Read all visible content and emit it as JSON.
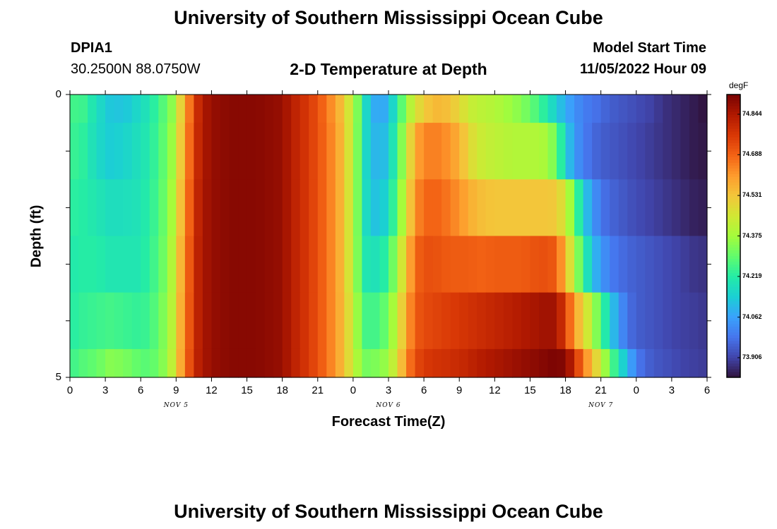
{
  "header": {
    "title": "University of Southern Mississippi Ocean Cube",
    "station": "DPIA1",
    "coords": "30.2500N  88.0750W",
    "plot_title": "2-D Temperature at Depth",
    "model_start_label": "Model Start Time",
    "model_start_value": "11/05/2022 Hour 09"
  },
  "footer": {
    "title": "University of Southern Mississippi Ocean Cube"
  },
  "chart_data": {
    "type": "heatmap",
    "title": "2-D Temperature at Depth",
    "xlabel": "Forecast Time(Z)",
    "ylabel": "Depth (ft)",
    "x_tick_labels": [
      "0",
      "3",
      "6",
      "9",
      "12",
      "15",
      "18",
      "21",
      "0",
      "3",
      "6",
      "9",
      "12",
      "15",
      "18",
      "21",
      "0",
      "3",
      "6"
    ],
    "date_labels": [
      {
        "text": "NOV 5",
        "hour": 12
      },
      {
        "text": "NOV 6",
        "hour": 36
      },
      {
        "text": "NOV 7",
        "hour": 60
      }
    ],
    "y_tick_labels": [
      "0",
      "5"
    ],
    "xlim_hours": [
      0,
      72
    ],
    "ylim_ft": [
      0,
      5
    ],
    "colorbar": {
      "unit": "degF",
      "ticks": [
        "74.844",
        "74.688",
        "74.531",
        "74.375",
        "74.219",
        "74.062",
        "73.906"
      ],
      "tick_values": [
        74.844,
        74.688,
        74.531,
        74.375,
        74.219,
        74.062,
        73.906
      ],
      "range": [
        73.83,
        74.92
      ],
      "colormap": [
        "#30123b",
        "#4145ab",
        "#4675ed",
        "#39a2fc",
        "#1bcfd4",
        "#24eca6",
        "#61fc6c",
        "#a4fc3b",
        "#d1e834",
        "#f3c63a",
        "#fe9b2d",
        "#f36315",
        "#d93806",
        "#b11901",
        "#7a0403"
      ]
    },
    "depth_levels_ft": [
      0,
      0.5,
      1.5,
      2.5,
      3.5,
      4.5,
      5
    ],
    "hour_keys": [
      0,
      1.5,
      3,
      4.5,
      6,
      7.5,
      9,
      10.5,
      12,
      12.5,
      13,
      14,
      15,
      16,
      18,
      21,
      24,
      25,
      26,
      27,
      28,
      29,
      30,
      31,
      32,
      33,
      33.5,
      34,
      34.5,
      35,
      36,
      37,
      38,
      39,
      40,
      41,
      42,
      43,
      44,
      45,
      46,
      47,
      48,
      49,
      50,
      51,
      52,
      53,
      54,
      55,
      56,
      57,
      58,
      59,
      60,
      61,
      62,
      63,
      64,
      65,
      66,
      67,
      68,
      69,
      70,
      71,
      72
    ],
    "values_by_depth": [
      [
        74.26,
        74.25,
        74.18,
        74.13,
        74.12,
        74.16,
        74.2,
        74.28,
        74.38,
        74.5,
        74.56,
        74.76,
        74.84,
        74.88,
        74.9,
        74.9,
        74.88,
        74.83,
        74.8,
        74.76,
        74.72,
        74.66,
        74.6,
        74.52,
        74.4,
        74.26,
        74.16,
        74.12,
        74.08,
        74.06,
        74.1,
        74.22,
        74.36,
        74.46,
        74.52,
        74.55,
        74.56,
        74.53,
        74.5,
        74.44,
        74.42,
        74.41,
        74.4,
        74.38,
        74.36,
        74.34,
        74.3,
        74.26,
        74.2,
        74.14,
        74.08,
        74.04,
        74.0,
        73.99,
        73.97,
        73.95,
        73.94,
        73.93,
        73.92,
        73.91,
        73.9,
        73.88,
        73.87,
        73.86,
        73.85,
        73.84,
        73.83
      ],
      [
        74.25,
        74.23,
        74.17,
        74.14,
        74.15,
        74.18,
        74.21,
        74.29,
        74.4,
        74.52,
        74.58,
        74.77,
        74.84,
        74.88,
        74.9,
        74.9,
        74.88,
        74.83,
        74.8,
        74.76,
        74.72,
        74.67,
        74.61,
        74.53,
        74.4,
        74.25,
        74.16,
        74.12,
        74.1,
        74.09,
        74.13,
        74.26,
        74.42,
        74.58,
        74.64,
        74.65,
        74.64,
        74.61,
        74.57,
        74.5,
        74.45,
        74.43,
        74.42,
        74.41,
        74.4,
        74.4,
        74.4,
        74.39,
        74.38,
        74.3,
        74.15,
        74.05,
        74.0,
        73.97,
        73.95,
        73.94,
        73.93,
        73.92,
        73.91,
        73.9,
        73.89,
        73.88,
        73.87,
        73.86,
        73.85,
        73.84,
        73.84
      ],
      [
        74.23,
        74.22,
        74.2,
        74.18,
        74.18,
        74.19,
        74.22,
        74.3,
        74.42,
        74.54,
        74.6,
        74.78,
        74.85,
        74.88,
        74.9,
        74.9,
        74.88,
        74.83,
        74.8,
        74.76,
        74.72,
        74.67,
        74.61,
        74.53,
        74.4,
        74.25,
        74.17,
        74.14,
        74.12,
        74.12,
        74.17,
        74.3,
        74.46,
        74.62,
        74.68,
        74.69,
        74.68,
        74.65,
        74.62,
        74.58,
        74.55,
        74.54,
        74.53,
        74.53,
        74.53,
        74.53,
        74.53,
        74.53,
        74.53,
        74.52,
        74.45,
        74.3,
        74.15,
        74.05,
        73.99,
        73.96,
        73.95,
        73.93,
        73.92,
        73.91,
        73.9,
        73.89,
        73.88,
        73.87,
        73.86,
        73.85,
        73.85
      ],
      [
        74.21,
        74.22,
        74.22,
        74.2,
        74.2,
        74.2,
        74.23,
        74.31,
        74.44,
        74.56,
        74.62,
        74.79,
        74.85,
        74.88,
        74.9,
        74.9,
        74.88,
        74.83,
        74.8,
        74.76,
        74.72,
        74.67,
        74.61,
        74.53,
        74.4,
        74.26,
        74.2,
        74.19,
        74.19,
        74.19,
        74.25,
        74.38,
        74.53,
        74.68,
        74.72,
        74.72,
        74.71,
        74.7,
        74.7,
        74.7,
        74.69,
        74.69,
        74.7,
        74.7,
        74.7,
        74.7,
        74.71,
        74.72,
        74.72,
        74.7,
        74.55,
        74.4,
        74.25,
        74.12,
        74.05,
        74.0,
        73.98,
        73.96,
        73.95,
        73.94,
        73.93,
        73.92,
        73.91,
        73.9,
        73.89,
        73.88,
        73.88
      ],
      [
        74.22,
        74.24,
        74.25,
        74.26,
        74.25,
        74.24,
        74.25,
        74.33,
        74.45,
        74.57,
        74.63,
        74.79,
        74.85,
        74.88,
        74.9,
        74.9,
        74.88,
        74.83,
        74.8,
        74.76,
        74.72,
        74.67,
        74.61,
        74.54,
        74.42,
        74.3,
        74.26,
        74.26,
        74.26,
        74.27,
        74.32,
        74.44,
        74.58,
        74.7,
        74.73,
        74.74,
        74.75,
        74.76,
        74.77,
        74.78,
        74.79,
        74.8,
        74.81,
        74.82,
        74.83,
        74.84,
        74.85,
        74.86,
        74.87,
        74.86,
        74.75,
        74.6,
        74.5,
        74.4,
        74.27,
        74.15,
        74.05,
        73.98,
        73.95,
        73.94,
        73.93,
        73.92,
        73.91,
        73.9,
        73.9,
        73.89,
        73.89
      ],
      [
        74.25,
        74.28,
        74.3,
        74.34,
        74.33,
        74.3,
        74.28,
        74.34,
        74.46,
        74.58,
        74.64,
        74.8,
        74.85,
        74.88,
        74.9,
        74.9,
        74.88,
        74.83,
        74.8,
        74.76,
        74.72,
        74.67,
        74.61,
        74.54,
        74.43,
        74.34,
        74.32,
        74.33,
        74.33,
        74.34,
        74.37,
        74.48,
        74.62,
        74.73,
        74.76,
        74.78,
        74.78,
        74.79,
        74.8,
        74.81,
        74.83,
        74.84,
        74.85,
        74.86,
        74.87,
        74.88,
        74.89,
        74.9,
        74.91,
        74.92,
        74.9,
        74.8,
        74.65,
        74.56,
        74.43,
        74.3,
        74.2,
        74.1,
        74.0,
        73.96,
        73.94,
        73.93,
        73.92,
        73.91,
        73.9,
        73.9,
        73.89
      ]
    ]
  }
}
